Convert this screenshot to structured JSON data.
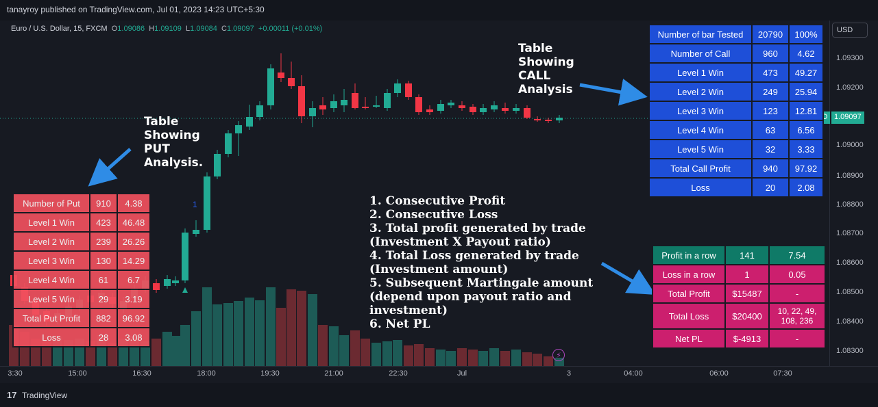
{
  "header": {
    "published": "tanayroy published on TradingView.com, Jul 01, 2023 14:23 UTC+5:30"
  },
  "legend": {
    "symbol": "Euro / U.S. Dollar, 15, FXCM",
    "o_label": "O",
    "o": "1.09086",
    "h_label": "H",
    "h": "1.09109",
    "l_label": "L",
    "l": "1.09084",
    "c_label": "C",
    "c": "1.09097",
    "change": "+0.00011 (+0.01%)"
  },
  "price_scale": {
    "currency": "USD",
    "ticks": [
      "1.09300",
      "1.09200",
      "1.09000",
      "1.08900",
      "1.08800",
      "1.08700",
      "1.08600",
      "1.08500",
      "1.08400",
      "1.08300"
    ],
    "symbol_tag": "EURUSD",
    "last_price": "1.09097"
  },
  "time_axis": {
    "ticks": [
      "3:30",
      "15:00",
      "16:30",
      "18:00",
      "19:30",
      "21:00",
      "22:30",
      "Jul",
      "3",
      "04:00",
      "06:00",
      "07:30"
    ]
  },
  "colors": {
    "up": "#22ab94",
    "down": "#f23645",
    "call_table": "#1e4fd8",
    "put_table": "#f0515e",
    "pl_green": "#0f7a67",
    "pl_pink": "#cc1f6e",
    "arrow": "#2f8ce6"
  },
  "call_table": {
    "rows": [
      [
        "Number of bar Tested",
        "20790",
        "100%"
      ],
      [
        "Number of Call",
        "960",
        "4.62"
      ],
      [
        "Level 1 Win",
        "473",
        "49.27"
      ],
      [
        "Level 2 Win",
        "249",
        "25.94"
      ],
      [
        "Level 3 Win",
        "123",
        "12.81"
      ],
      [
        "Level 4 Win",
        "63",
        "6.56"
      ],
      [
        "Level 5 Win",
        "32",
        "3.33"
      ],
      [
        "Total Call Profit",
        "940",
        "97.92"
      ],
      [
        "Loss",
        "20",
        "2.08"
      ]
    ]
  },
  "put_table": {
    "rows": [
      [
        "Number of Put",
        "910",
        "4.38"
      ],
      [
        "Level 1 Win",
        "423",
        "46.48"
      ],
      [
        "Level 2 Win",
        "239",
        "26.26"
      ],
      [
        "Level 3 Win",
        "130",
        "14.29"
      ],
      [
        "Level 4 Win",
        "61",
        "6.7"
      ],
      [
        "Level 5 Win",
        "29",
        "3.19"
      ],
      [
        "Total Put Profit",
        "882",
        "96.92"
      ],
      [
        "Loss",
        "28",
        "3.08"
      ]
    ]
  },
  "pl_table": {
    "rows": [
      {
        "cells": [
          "Profit in a row",
          "141",
          "7.54"
        ],
        "tone": "green"
      },
      {
        "cells": [
          "Loss in a row",
          "1",
          "0.05"
        ],
        "tone": "pink"
      },
      {
        "cells": [
          "Total Profit",
          "$15487",
          "-"
        ],
        "tone": "pink"
      },
      {
        "cells": [
          "Total Loss",
          "$20400",
          "10, 22, 49,\n108, 236"
        ],
        "tone": "pink"
      },
      {
        "cells": [
          "Net PL",
          "$-4913",
          "-"
        ],
        "tone": "pink"
      }
    ]
  },
  "annotations": {
    "call_note": "Table\nShowing\nCALL\nAnalysis",
    "put_note": "Table\nShowing\nPUT\nAnalysis.",
    "list": [
      "1. Consecutive Profit",
      "2. Consecutive Loss",
      "3. Total profit generated by trade",
      "(Investment X Payout ratio)",
      "4. Total Loss generated by trade",
      "(Investment amount)",
      "5. Subsequent Martingale amount",
      "(depend upon payout ratio and",
      "investment)",
      "6. Net PL"
    ]
  },
  "marker": {
    "label": "1"
  },
  "footer": {
    "brand": "TradingView",
    "logo": "17"
  }
}
